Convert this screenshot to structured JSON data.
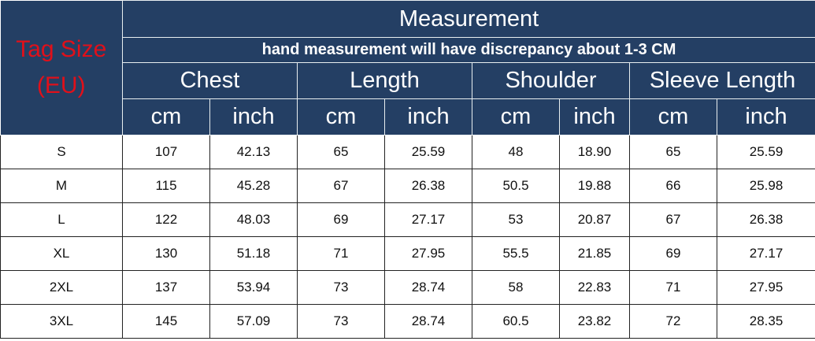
{
  "header": {
    "tag_size": "Tag Size",
    "tag_size_unit": "(EU)",
    "measurement": "Measurement",
    "note": "hand measurement will have discrepancy about 1-3 CM",
    "groups": [
      "Chest",
      "Length",
      "Shoulder",
      "Sleeve Length"
    ],
    "units": [
      "cm",
      "inch",
      "cm",
      "inch",
      "cm",
      "inch",
      "cm",
      "inch"
    ]
  },
  "colors": {
    "header_bg": "#243f64",
    "tag_text": "#e0101a"
  },
  "rows": [
    [
      "S",
      "107",
      "42.13",
      "65",
      "25.59",
      "48",
      "18.90",
      "65",
      "25.59"
    ],
    [
      "M",
      "115",
      "45.28",
      "67",
      "26.38",
      "50.5",
      "19.88",
      "66",
      "25.98"
    ],
    [
      "L",
      "122",
      "48.03",
      "69",
      "27.17",
      "53",
      "20.87",
      "67",
      "26.38"
    ],
    [
      "XL",
      "130",
      "51.18",
      "71",
      "27.95",
      "55.5",
      "21.85",
      "69",
      "27.17"
    ],
    [
      "2XL",
      "137",
      "53.94",
      "73",
      "28.74",
      "58",
      "22.83",
      "71",
      "27.95"
    ],
    [
      "3XL",
      "145",
      "57.09",
      "73",
      "28.74",
      "60.5",
      "23.82",
      "72",
      "28.35"
    ]
  ]
}
